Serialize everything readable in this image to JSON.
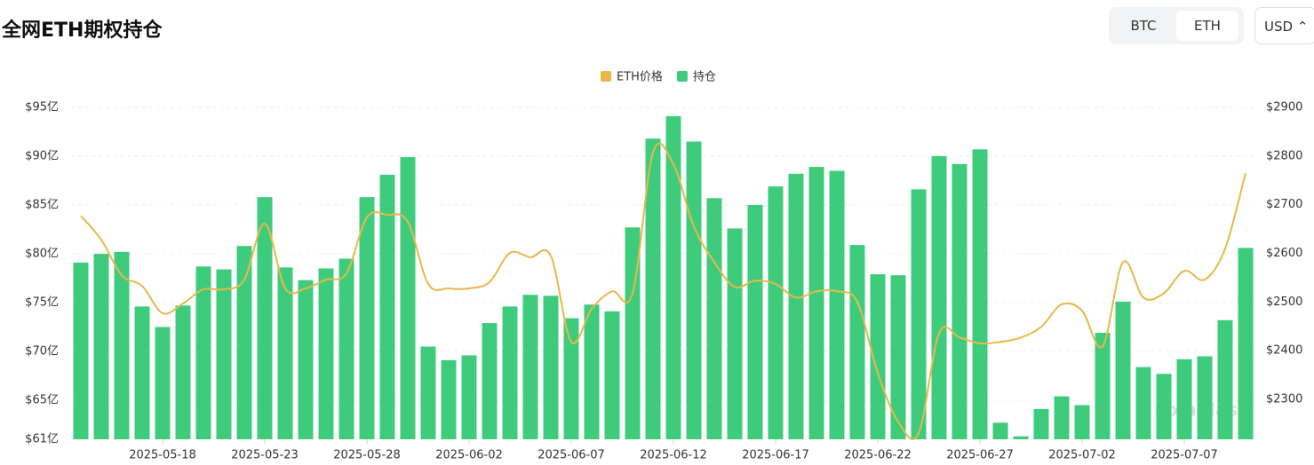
{
  "header": {
    "title": "全网ETH期权持仓",
    "tabs": [
      "BTC",
      "ETH"
    ],
    "currency": "USD"
  },
  "watermark": "coinglass",
  "chart_data": {
    "type": "bar-line",
    "categories": [
      null,
      null,
      null,
      null,
      "2025-05-18",
      null,
      null,
      null,
      null,
      "2025-05-23",
      null,
      null,
      null,
      null,
      "2025-05-28",
      null,
      null,
      null,
      null,
      "2025-06-02",
      null,
      null,
      null,
      null,
      "2025-06-07",
      null,
      null,
      null,
      null,
      "2025-06-12",
      null,
      null,
      null,
      null,
      "2025-06-17",
      null,
      null,
      null,
      null,
      "2025-06-22",
      null,
      null,
      null,
      null,
      "2025-06-27",
      null,
      null,
      null,
      null,
      "2025-07-02",
      null,
      null,
      null,
      null,
      "2025-07-07",
      null,
      null,
      null
    ],
    "series": [
      {
        "name": "ETH价格",
        "color": "#e8b84a",
        "axis": "y2",
        "kind": "line",
        "values": [
          2677,
          2628,
          2555,
          2533,
          2477,
          2497,
          2526,
          2526,
          2546,
          2661,
          2528,
          2528,
          2546,
          2559,
          2674,
          2679,
          2665,
          2537,
          2528,
          2528,
          2541,
          2601,
          2592,
          2595,
          2418,
          2486,
          2522,
          2518,
          2807,
          2783,
          2655,
          2582,
          2531,
          2544,
          2537,
          2509,
          2522,
          2522,
          2500,
          2354,
          2254,
          2230,
          2436,
          2427,
          2415,
          2418,
          2427,
          2449,
          2495,
          2482,
          2409,
          2582,
          2509,
          2518,
          2564,
          2546,
          2610,
          2765
        ]
      },
      {
        "name": "持仓",
        "color": "#3ecc7c",
        "kind": "bar",
        "values": [
          79.1,
          80.0,
          80.2,
          74.6,
          72.5,
          74.7,
          78.7,
          78.4,
          80.8,
          85.8,
          78.6,
          77.3,
          78.5,
          79.5,
          85.8,
          88.1,
          89.9,
          70.5,
          69.1,
          69.6,
          72.9,
          74.6,
          75.8,
          75.7,
          73.4,
          74.8,
          74.1,
          82.7,
          91.8,
          94.1,
          91.5,
          85.7,
          82.6,
          85.0,
          86.9,
          88.2,
          88.9,
          88.5,
          80.9,
          77.9,
          77.8,
          86.6,
          90.0,
          89.2,
          90.7,
          62.7,
          61.3,
          64.1,
          65.4,
          64.5,
          71.9,
          75.1,
          68.4,
          67.7,
          69.2,
          69.5,
          73.2,
          80.6
        ]
      }
    ],
    "ylim": [
      61,
      95
    ],
    "yticks": [
      {
        "value": 61,
        "label": "$61亿"
      },
      {
        "value": 65,
        "label": "$65亿"
      },
      {
        "value": 70,
        "label": "$70亿"
      },
      {
        "value": 75,
        "label": "$75亿"
      },
      {
        "value": 80,
        "label": "$80亿"
      },
      {
        "value": 85,
        "label": "$85亿"
      },
      {
        "value": 90,
        "label": "$90亿"
      },
      {
        "value": 95,
        "label": "$95亿"
      }
    ],
    "y2lim": [
      2218,
      2900
    ],
    "y2ticks": [
      {
        "value": 2300,
        "label": "$2300"
      },
      {
        "value": 2400,
        "label": "$2400"
      },
      {
        "value": 2500,
        "label": "$2500"
      },
      {
        "value": 2600,
        "label": "$2600"
      },
      {
        "value": 2700,
        "label": "$2700"
      },
      {
        "value": 2800,
        "label": "$2800"
      },
      {
        "value": 2900,
        "label": "$2900"
      }
    ],
    "grid": true
  }
}
